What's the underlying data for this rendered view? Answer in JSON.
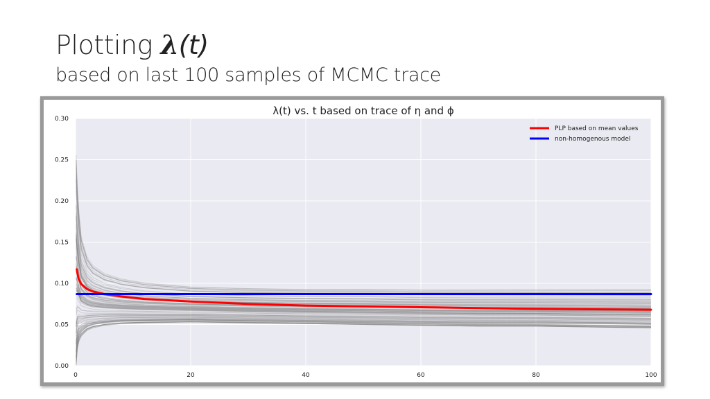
{
  "slide": {
    "title_prefix": "Plotting ",
    "title_symbol": "λ",
    "title_arg": "(t)",
    "subtitle": "based on last 100 samples of MCMC trace"
  },
  "chart_data": {
    "type": "line",
    "title": "λ(t) vs. t based on trace of η and ϕ",
    "xlabel": "",
    "ylabel": "",
    "xlim": [
      0,
      100
    ],
    "ylim": [
      0,
      0.3
    ],
    "xticks": [
      0,
      20,
      40,
      60,
      80,
      100
    ],
    "yticks": [
      "0.00",
      "0.05",
      "0.10",
      "0.15",
      "0.20",
      "0.25",
      "0.30"
    ],
    "grid": true,
    "background": "#eaeaf2",
    "legend_position": "top-right",
    "series": [
      {
        "name": "PLP based on mean values",
        "color": "#ff0000",
        "x": [
          0.2,
          0.5,
          1,
          2,
          3,
          5,
          8,
          12,
          20,
          30,
          40,
          50,
          60,
          70,
          80,
          90,
          100
        ],
        "values": [
          0.117,
          0.106,
          0.099,
          0.093,
          0.09,
          0.087,
          0.084,
          0.081,
          0.078,
          0.075,
          0.073,
          0.072,
          0.071,
          0.07,
          0.069,
          0.0685,
          0.068
        ]
      },
      {
        "name": "non-homogenous model",
        "color": "#0000ff",
        "x": [
          0.2,
          100
        ],
        "values": [
          0.087,
          0.087
        ]
      }
    ],
    "trace_band": {
      "description_color": "#808080",
      "count": 100,
      "x": [
        0.1,
        0.3,
        0.6,
        1,
        2,
        3,
        5,
        8,
        12,
        20,
        30,
        40,
        50,
        60,
        70,
        80,
        90,
        100
      ],
      "upper_envelope": [
        0.265,
        0.225,
        0.19,
        0.16,
        0.135,
        0.124,
        0.114,
        0.107,
        0.102,
        0.097,
        0.095,
        0.094,
        0.094,
        0.093,
        0.093,
        0.093,
        0.093,
        0.093
      ],
      "lower_envelope": [
        0.0,
        0.02,
        0.03,
        0.036,
        0.043,
        0.046,
        0.049,
        0.051,
        0.052,
        0.053,
        0.052,
        0.051,
        0.05,
        0.049,
        0.048,
        0.048,
        0.047,
        0.046
      ]
    }
  }
}
